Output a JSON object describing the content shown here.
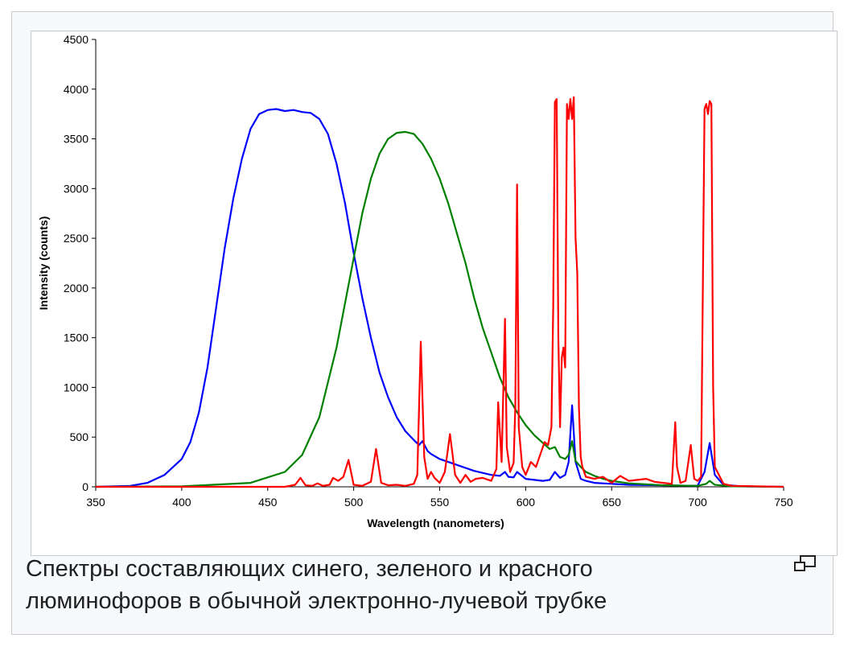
{
  "caption": "Спектры составляющих синего, зеленого и красного люминофоров в обычной электронно-лучевой трубке",
  "magnify_icon": "magnify-clip-icon",
  "chart_data": {
    "type": "line",
    "title": "",
    "xlabel": "Wavelength (nanometers)",
    "ylabel": "Intensity (counts)",
    "xlim": [
      350,
      750
    ],
    "ylim": [
      0,
      4500
    ],
    "xticks": [
      350,
      400,
      450,
      500,
      550,
      600,
      650,
      700,
      750
    ],
    "yticks": [
      0,
      500,
      1000,
      1500,
      2000,
      2500,
      3000,
      3500,
      4000,
      4500
    ],
    "grid": false,
    "legend": "none",
    "series": [
      {
        "name": "Blue phosphor",
        "color": "#0000ff",
        "x": [
          350,
          370,
          380,
          390,
          400,
          405,
          410,
          415,
          420,
          425,
          430,
          435,
          440,
          445,
          450,
          455,
          460,
          465,
          470,
          475,
          480,
          485,
          490,
          495,
          500,
          505,
          510,
          515,
          520,
          525,
          530,
          535,
          538,
          540,
          543,
          545,
          550,
          555,
          560,
          565,
          570,
          575,
          580,
          585,
          588,
          590,
          593,
          595,
          600,
          605,
          610,
          614,
          617,
          620,
          623,
          625,
          627,
          629,
          632,
          635,
          640,
          650,
          660,
          680,
          700,
          704,
          707,
          710,
          715,
          725,
          750
        ],
        "y": [
          0,
          10,
          40,
          120,
          280,
          450,
          750,
          1200,
          1800,
          2400,
          2900,
          3300,
          3600,
          3750,
          3790,
          3800,
          3780,
          3790,
          3770,
          3760,
          3700,
          3550,
          3250,
          2850,
          2350,
          1900,
          1500,
          1150,
          900,
          700,
          560,
          470,
          420,
          460,
          360,
          330,
          280,
          250,
          220,
          190,
          160,
          140,
          120,
          110,
          150,
          100,
          95,
          150,
          80,
          70,
          60,
          70,
          150,
          90,
          120,
          250,
          820,
          250,
          80,
          60,
          40,
          30,
          20,
          15,
          10,
          150,
          440,
          120,
          20,
          5,
          0
        ]
      },
      {
        "name": "Green phosphor",
        "color": "#008000",
        "x": [
          350,
          400,
          440,
          460,
          470,
          480,
          490,
          500,
          505,
          510,
          515,
          520,
          525,
          530,
          535,
          540,
          545,
          550,
          555,
          560,
          565,
          570,
          575,
          580,
          585,
          590,
          595,
          600,
          605,
          610,
          614,
          617,
          620,
          623,
          625,
          627,
          629,
          632,
          635,
          640,
          645,
          650,
          660,
          680,
          700,
          705,
          707,
          710,
          720,
          750
        ],
        "y": [
          0,
          5,
          40,
          150,
          320,
          700,
          1400,
          2300,
          2750,
          3100,
          3350,
          3500,
          3560,
          3570,
          3550,
          3450,
          3300,
          3100,
          2850,
          2550,
          2250,
          1900,
          1600,
          1350,
          1100,
          900,
          750,
          620,
          520,
          440,
          380,
          400,
          300,
          280,
          320,
          460,
          260,
          200,
          150,
          110,
          80,
          60,
          35,
          15,
          10,
          30,
          60,
          20,
          5,
          0
        ]
      },
      {
        "name": "Red phosphor",
        "color": "#ff0000",
        "x": [
          350,
          460,
          466,
          469,
          472,
          476,
          479,
          482,
          486,
          488,
          491,
          494,
          497,
          500,
          505,
          510,
          513,
          516,
          520,
          525,
          530,
          535,
          537,
          539,
          541,
          543,
          545,
          547,
          550,
          553,
          556,
          559,
          562,
          565,
          568,
          571,
          575,
          580,
          583,
          584,
          586,
          588,
          589,
          591,
          593,
          594,
          595,
          596,
          598,
          600,
          603,
          606,
          609,
          611,
          613,
          615,
          616,
          617,
          618,
          619,
          620,
          621,
          622,
          623,
          624,
          625,
          626,
          627,
          628,
          629,
          630,
          631,
          632,
          633,
          635,
          640,
          645,
          650,
          655,
          660,
          670,
          675,
          680,
          685,
          687,
          688,
          690,
          693,
          696,
          698,
          700,
          702,
          704,
          705,
          706,
          707,
          708,
          709,
          710,
          715,
          720,
          750
        ],
        "y": [
          0,
          0,
          20,
          90,
          15,
          10,
          35,
          10,
          20,
          90,
          60,
          100,
          270,
          20,
          10,
          50,
          380,
          40,
          15,
          20,
          10,
          30,
          120,
          1460,
          300,
          80,
          150,
          90,
          40,
          150,
          530,
          120,
          40,
          120,
          50,
          80,
          90,
          60,
          180,
          850,
          250,
          1690,
          400,
          150,
          240,
          800,
          3040,
          600,
          200,
          120,
          250,
          200,
          350,
          450,
          420,
          600,
          1800,
          3870,
          3900,
          1500,
          600,
          1300,
          1400,
          1200,
          3850,
          3700,
          3900,
          3700,
          3920,
          2500,
          2150,
          800,
          300,
          200,
          100,
          80,
          100,
          40,
          110,
          60,
          80,
          50,
          40,
          30,
          650,
          200,
          40,
          60,
          420,
          80,
          60,
          100,
          3800,
          3850,
          3750,
          3880,
          3850,
          1000,
          200,
          30,
          10,
          0
        ]
      }
    ]
  }
}
